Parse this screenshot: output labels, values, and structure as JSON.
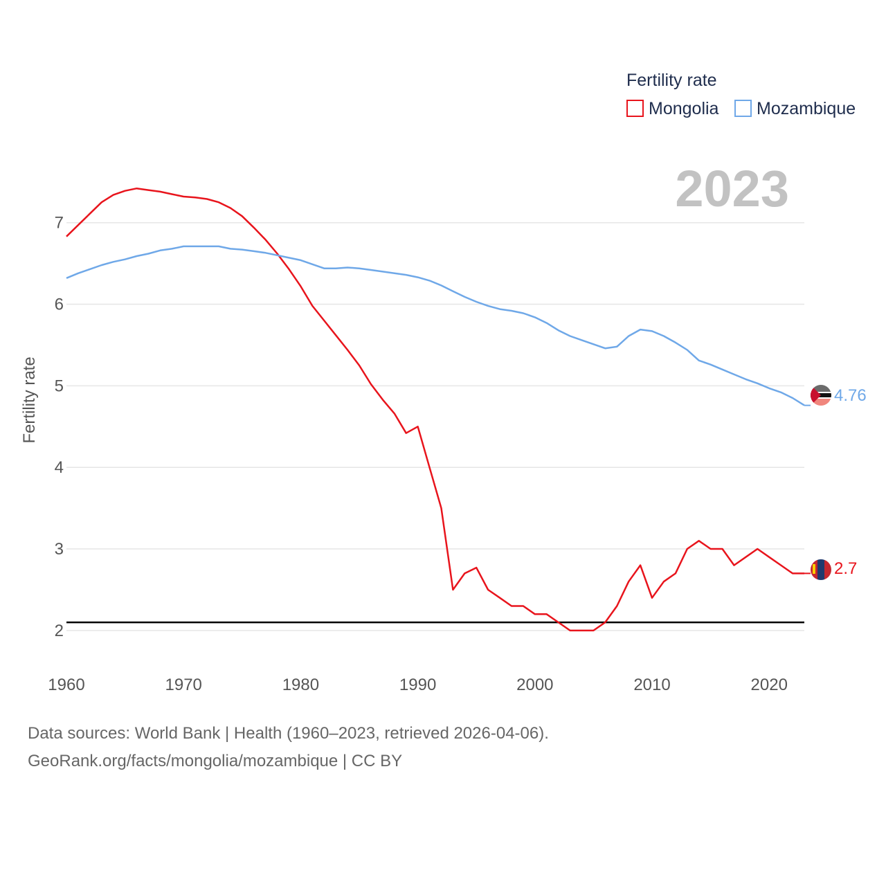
{
  "chart_data": {
    "type": "line",
    "title": "",
    "year_label": "2023",
    "ylabel": "Fertility rate",
    "xlabel": "",
    "xlim": [
      1960,
      2023
    ],
    "ylim": [
      1.6,
      7.6
    ],
    "x_ticks": [
      1960,
      1970,
      1980,
      1990,
      2000,
      2010,
      2020
    ],
    "y_ticks": [
      2,
      3,
      4,
      5,
      6,
      7
    ],
    "legend": {
      "title": "Fertility rate",
      "position": "top-right"
    },
    "reference_line": {
      "value": 2.1
    },
    "x": [
      1960,
      1961,
      1962,
      1963,
      1964,
      1965,
      1966,
      1967,
      1968,
      1969,
      1970,
      1971,
      1972,
      1973,
      1974,
      1975,
      1976,
      1977,
      1978,
      1979,
      1980,
      1981,
      1982,
      1983,
      1984,
      1985,
      1986,
      1987,
      1988,
      1989,
      1990,
      1991,
      1992,
      1993,
      1994,
      1995,
      1996,
      1997,
      1998,
      1999,
      2000,
      2001,
      2002,
      2003,
      2004,
      2005,
      2006,
      2007,
      2008,
      2009,
      2010,
      2011,
      2012,
      2013,
      2014,
      2015,
      2016,
      2017,
      2018,
      2019,
      2020,
      2021,
      2022,
      2023
    ],
    "series": [
      {
        "name": "Mongolia",
        "color": "#e8141c",
        "end_label": "2.7",
        "values": [
          6.83,
          6.97,
          7.11,
          7.25,
          7.34,
          7.39,
          7.42,
          7.4,
          7.38,
          7.35,
          7.32,
          7.31,
          7.29,
          7.25,
          7.18,
          7.08,
          6.94,
          6.79,
          6.62,
          6.43,
          6.22,
          5.98,
          5.8,
          5.62,
          5.44,
          5.25,
          5.02,
          4.83,
          4.66,
          4.42,
          4.5,
          4.0,
          3.5,
          2.5,
          2.7,
          2.77,
          2.5,
          2.4,
          2.3,
          2.3,
          2.2,
          2.2,
          2.1,
          2.0,
          2.0,
          2.0,
          2.1,
          2.3,
          2.6,
          2.8,
          2.4,
          2.6,
          2.7,
          3.0,
          3.1,
          3.0,
          3.0,
          2.8,
          2.9,
          3.0,
          2.9,
          2.8,
          2.7,
          2.7
        ]
      },
      {
        "name": "Mozambique",
        "color": "#6fa8e8",
        "end_label": "4.76",
        "values": [
          6.32,
          6.38,
          6.43,
          6.48,
          6.52,
          6.55,
          6.59,
          6.62,
          6.66,
          6.68,
          6.71,
          6.71,
          6.71,
          6.71,
          6.68,
          6.67,
          6.65,
          6.63,
          6.6,
          6.57,
          6.54,
          6.49,
          6.44,
          6.44,
          6.45,
          6.44,
          6.42,
          6.4,
          6.38,
          6.36,
          6.33,
          6.29,
          6.23,
          6.16,
          6.09,
          6.03,
          5.98,
          5.94,
          5.92,
          5.89,
          5.84,
          5.77,
          5.68,
          5.61,
          5.56,
          5.51,
          5.46,
          5.48,
          5.61,
          5.69,
          5.67,
          5.61,
          5.53,
          5.44,
          5.31,
          5.26,
          5.2,
          5.14,
          5.08,
          5.03,
          4.97,
          4.92,
          4.85,
          4.76
        ]
      }
    ]
  },
  "footer": {
    "line1": "Data sources: World Bank | Health (1960–2023, retrieved 2026-04-06).",
    "line2": "GeoRank.org/facts/mongolia/mozambique | CC BY"
  }
}
